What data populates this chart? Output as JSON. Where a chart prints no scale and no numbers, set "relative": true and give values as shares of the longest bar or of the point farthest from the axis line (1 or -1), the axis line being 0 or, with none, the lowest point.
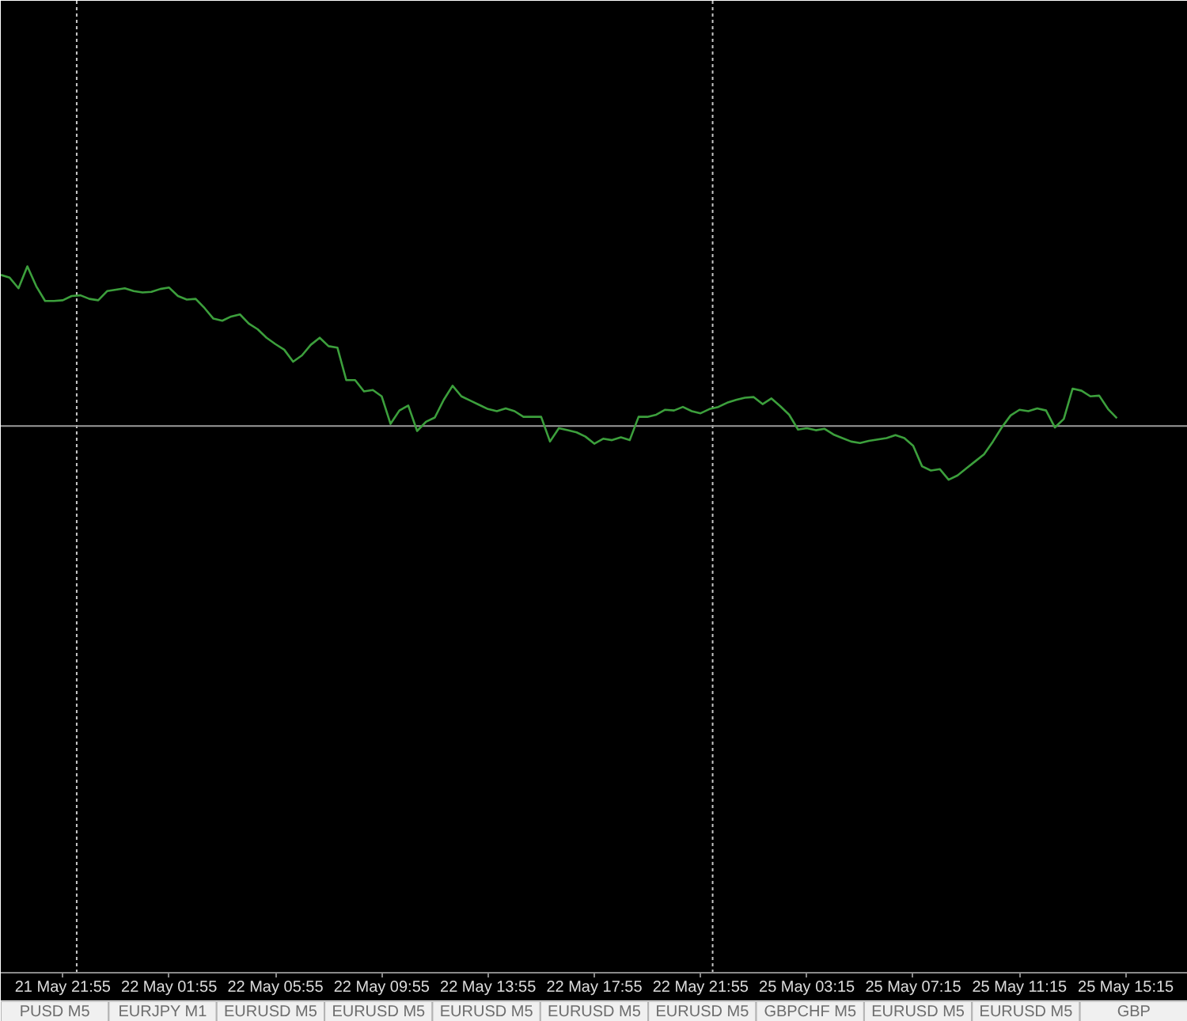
{
  "chart_data": {
    "type": "line",
    "relative": true,
    "tick_labels": "x",
    "categories": [
      null,
      null,
      null,
      null,
      null,
      null,
      null,
      "21 May 21:55",
      null,
      null,
      null,
      null,
      null,
      null,
      null,
      null,
      null,
      null,
      null,
      "22 May 01:55",
      null,
      null,
      null,
      null,
      null,
      null,
      null,
      null,
      null,
      null,
      null,
      "22 May 05:55",
      null,
      null,
      null,
      null,
      null,
      null,
      null,
      null,
      null,
      null,
      null,
      "22 May 09:55",
      null,
      null,
      null,
      null,
      null,
      null,
      null,
      null,
      null,
      null,
      null,
      "22 May 13:55",
      null,
      null,
      null,
      null,
      null,
      null,
      null,
      null,
      null,
      null,
      null,
      "22 May 17:55",
      null,
      null,
      null,
      null,
      null,
      null,
      null,
      null,
      null,
      null,
      null,
      "22 May 21:55",
      null,
      null,
      null,
      null,
      null,
      null,
      null,
      null,
      null,
      null,
      null,
      "25 May 03:15",
      null,
      null,
      null,
      null,
      null,
      null,
      null,
      null,
      null,
      null,
      null,
      "25 May 07:15",
      null,
      null,
      null,
      null,
      null,
      null,
      null,
      null,
      null,
      null,
      null,
      "25 May 11:15",
      null,
      null,
      null,
      null,
      null,
      null,
      null,
      null,
      null,
      null,
      null,
      "25 May 15:15",
      null,
      null,
      null,
      null,
      null,
      null
    ],
    "series": [
      {
        "color": "#3c9f3c",
        "values": [
          0.988,
          0.984,
          0.969,
          1,
          0.972,
          0.951,
          0.951,
          0.952,
          0.958,
          0.959,
          0.954,
          0.952,
          0.965,
          0.967,
          0.969,
          0.965,
          0.963,
          0.964,
          0.968,
          0.97,
          0.958,
          0.953,
          0.954,
          0.941,
          0.926,
          0.923,
          0.929,
          0.932,
          0.919,
          0.911,
          0.899,
          0.89,
          0.882,
          0.865,
          0.874,
          0.889,
          0.899,
          0.887,
          0.885,
          0.839,
          0.839,
          0.823,
          0.825,
          0.816,
          0.777,
          0.796,
          0.803,
          0.767,
          0.78,
          0.786,
          0.811,
          0.831,
          0.816,
          0.81,
          0.804,
          0.798,
          0.795,
          0.799,
          0.795,
          0.787,
          0.787,
          0.787,
          0.752,
          0.771,
          0.768,
          0.765,
          0.759,
          0.749,
          0.756,
          0.754,
          0.758,
          0.754,
          0.787,
          0.787,
          0.79,
          0.797,
          0.796,
          0.801,
          0.795,
          0.792,
          0.798,
          0.801,
          0.807,
          0.811,
          0.814,
          0.815,
          0.805,
          0.813,
          0.802,
          0.79,
          0.769,
          0.771,
          0.768,
          0.77,
          0.762,
          0.757,
          0.752,
          0.75,
          0.753,
          0.755,
          0.757,
          0.761,
          0.757,
          0.746,
          0.717,
          0.711,
          0.713,
          0.698,
          0.704,
          0.714,
          0.724,
          0.734,
          0.752,
          0.772,
          0.789,
          0.797,
          0.795,
          0.799,
          0.796,
          0.772,
          0.784,
          0.827,
          0.824,
          0.816,
          0.817,
          0.798,
          0.785,
          null,
          null,
          null,
          null,
          null,
          null,
          null
        ]
      }
    ],
    "ref_lines": [
      {
        "axis": "y",
        "value": 0.774,
        "color": "#9b9b9b",
        "line_style": "solid"
      }
    ],
    "annotations": [
      "PUSD M5",
      "EURJPY M1",
      "EURUSD M5",
      "EURUSD M5",
      "EURUSD M5",
      "EURUSD M5",
      "EURUSD M5",
      "GBPCHF M5",
      "EURUSD M5",
      "EURUSD M5",
      "GBP"
    ]
  }
}
